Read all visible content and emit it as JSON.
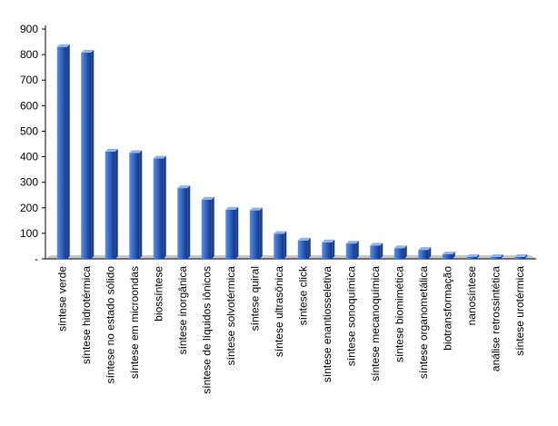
{
  "chart_data": {
    "type": "bar",
    "title": "",
    "xlabel": "",
    "ylabel": "",
    "ylim": [
      0,
      900
    ],
    "y_ticks": [
      "-",
      "100",
      "200",
      "300",
      "400",
      "500",
      "600",
      "700",
      "800",
      "900"
    ],
    "grid": false,
    "legend": "none",
    "bar_style": "3d",
    "categories": [
      "síntese verde",
      "síntese hidrotérmica",
      "síntese no estado sólido",
      "síntese em microondas",
      "biossíntese",
      "síntese inorgânica",
      "síntese de líquidos iônicos",
      "síntese solvotérmica",
      "síntese quiral",
      "síntese ultrasônica",
      "síntese click",
      "síntese enantiosseletiva",
      "síntese sonoquímica",
      "síntese mecanoquímica",
      "síntese biomimética",
      "síntese organometálica",
      "biotransformação",
      "nanosíntese",
      "análise retrossintética",
      "síntese urotérmica"
    ],
    "values": [
      830,
      808,
      420,
      415,
      393,
      277,
      232,
      193,
      190,
      98,
      72,
      65,
      60,
      52,
      42,
      35,
      18,
      3,
      1,
      1
    ],
    "colors": {
      "bar_front_light": "#5b8fe0",
      "bar_front_mid": "#2f66c8",
      "bar_front_dark": "#15317a",
      "bar_top": "#8fb5f0",
      "bar_side": "#1a3f8f",
      "floor": "#c8c8c8",
      "axis": "#000000"
    }
  }
}
